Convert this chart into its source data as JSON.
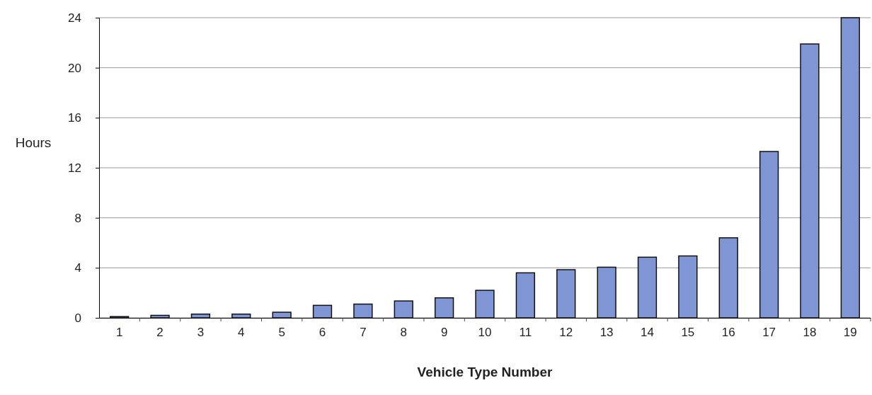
{
  "chart_data": {
    "type": "bar",
    "xlabel": "Vehicle Type Number",
    "ylabel": "Hours",
    "categories": [
      "1",
      "2",
      "3",
      "4",
      "5",
      "6",
      "7",
      "8",
      "9",
      "10",
      "11",
      "12",
      "13",
      "14",
      "15",
      "16",
      "17",
      "18",
      "19"
    ],
    "values": [
      0.1,
      0.2,
      0.3,
      0.3,
      0.45,
      1.0,
      1.1,
      1.35,
      1.6,
      2.2,
      3.6,
      3.85,
      4.05,
      4.85,
      4.95,
      6.4,
      13.3,
      21.9,
      24
    ],
    "color": "#8096d4",
    "ylim": [
      0,
      24
    ],
    "yticks": [
      0,
      4,
      8,
      12,
      16,
      20,
      24
    ],
    "grid": "y"
  }
}
